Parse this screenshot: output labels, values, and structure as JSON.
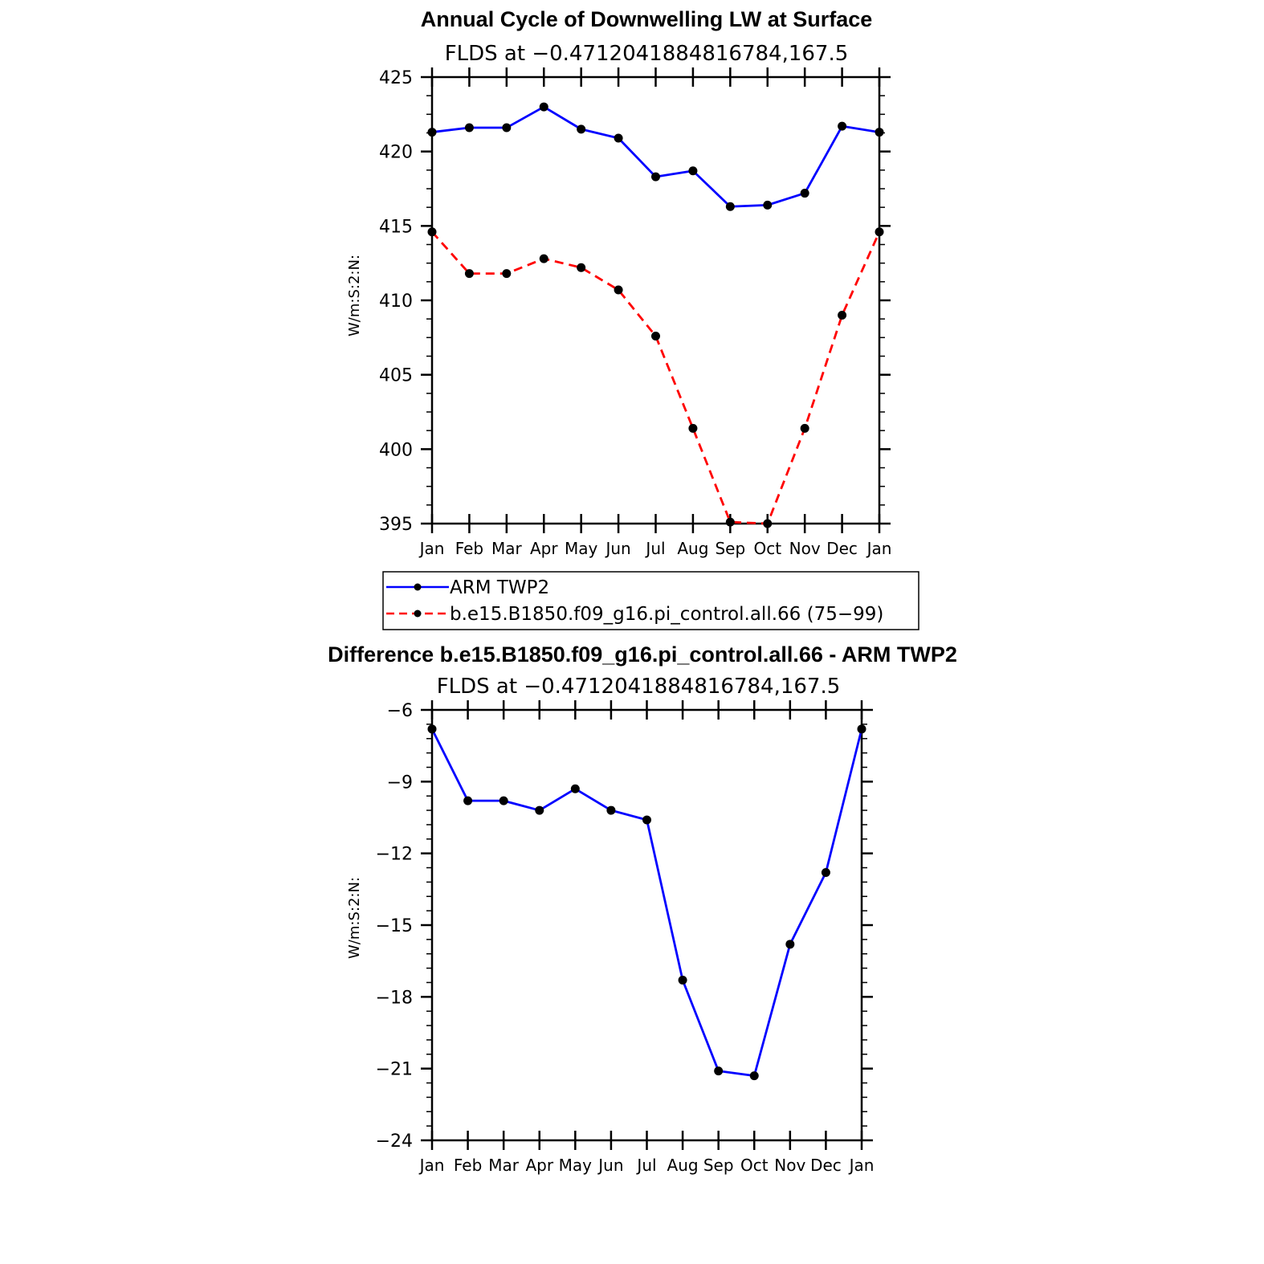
{
  "chart_data": [
    {
      "type": "line",
      "title": "Annual Cycle of Downwelling LW at Surface",
      "subtitle": "FLDS at −0.4712041884816784,167.5",
      "ylabel": "W/m:S:2:N:",
      "ylim": [
        395,
        425
      ],
      "yticks": [
        "425",
        "420",
        "415",
        "410",
        "405",
        "400",
        "395"
      ],
      "categories": [
        "Jan",
        "Feb",
        "Mar",
        "Apr",
        "May",
        "Jun",
        "Jul",
        "Aug",
        "Sep",
        "Oct",
        "Nov",
        "Dec",
        "Jan"
      ],
      "grid": false,
      "legend_position": "below",
      "series": [
        {
          "name": "ARM TWP2",
          "color": "#0000ff",
          "style": "solid",
          "values": [
            421.3,
            421.6,
            421.6,
            423.0,
            421.5,
            420.9,
            418.3,
            418.7,
            416.3,
            416.4,
            417.2,
            421.7,
            421.3
          ]
        },
        {
          "name": "b.e15.B1850.f09_g16.pi_control.all.66 (75−99)",
          "color": "#ff0000",
          "style": "dashed",
          "values": [
            414.6,
            411.8,
            411.8,
            412.8,
            412.2,
            410.7,
            407.6,
            401.4,
            395.1,
            395.0,
            401.4,
            409.0,
            414.6
          ]
        }
      ]
    },
    {
      "type": "line",
      "title": "Difference b.e15.B1850.f09_g16.pi_control.all.66 - ARM TWP2",
      "subtitle": "FLDS at −0.4712041884816784,167.5",
      "ylabel": "W/m:S:2:N:",
      "ylim": [
        -24,
        -6
      ],
      "yticks": [
        "−6",
        "−9",
        "−12",
        "−15",
        "−18",
        "−21",
        "−24"
      ],
      "categories": [
        "Jan",
        "Feb",
        "Mar",
        "Apr",
        "May",
        "Jun",
        "Jul",
        "Aug",
        "Sep",
        "Oct",
        "Nov",
        "Dec",
        "Jan"
      ],
      "grid": false,
      "series": [
        {
          "color": "#0000ff",
          "style": "solid",
          "values": [
            -6.8,
            -9.8,
            -9.8,
            -10.2,
            -9.3,
            -10.2,
            -10.6,
            -17.3,
            -21.1,
            -21.3,
            -15.8,
            -12.8,
            -6.8
          ]
        }
      ]
    }
  ]
}
